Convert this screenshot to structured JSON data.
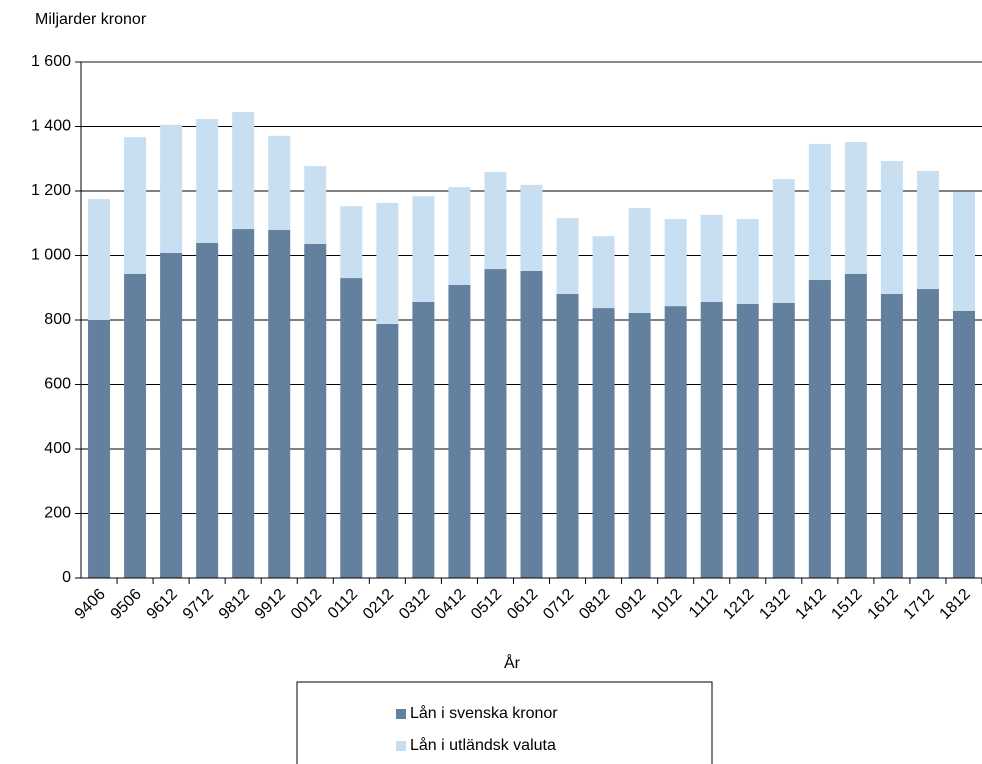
{
  "chart_data": {
    "type": "stacked-bar",
    "y_axis_label": "Miljarder kronor",
    "x_axis_label": "År",
    "categories": [
      "9406",
      "9506",
      "9612",
      "9712",
      "9812",
      "9912",
      "0012",
      "0112",
      "0212",
      "0312",
      "0412",
      "0512",
      "0612",
      "0712",
      "0812",
      "0912",
      "1012",
      "1112",
      "1212",
      "1312",
      "1412",
      "1512",
      "1612",
      "1712",
      "1812"
    ],
    "series": [
      {
        "name": "Lån i svenska kronor",
        "color": "#63809f",
        "values": [
          800,
          943,
          1008,
          1039,
          1082,
          1079,
          1036,
          930,
          788,
          856,
          909,
          958,
          952,
          881,
          837,
          822,
          843,
          856,
          850,
          853,
          924,
          943,
          881,
          896,
          828
        ]
      },
      {
        "name": "Lån i utländsk valuta",
        "color": "#c8dff1",
        "values": [
          375,
          424,
          397,
          384,
          363,
          292,
          241,
          223,
          375,
          328,
          303,
          301,
          267,
          235,
          223,
          325,
          270,
          270,
          263,
          384,
          422,
          409,
          412,
          366,
          369
        ]
      }
    ],
    "ylim": [
      0,
      1600
    ],
    "yticks": [
      0,
      200,
      400,
      600,
      800,
      {
        "value": 1000,
        "label": "1 000"
      },
      {
        "value": 1200,
        "label": "1 200"
      },
      {
        "value": 1400,
        "label": "1 400"
      },
      {
        "value": 1600,
        "label": "1 600"
      }
    ],
    "grid": true,
    "legend": "bottom"
  }
}
